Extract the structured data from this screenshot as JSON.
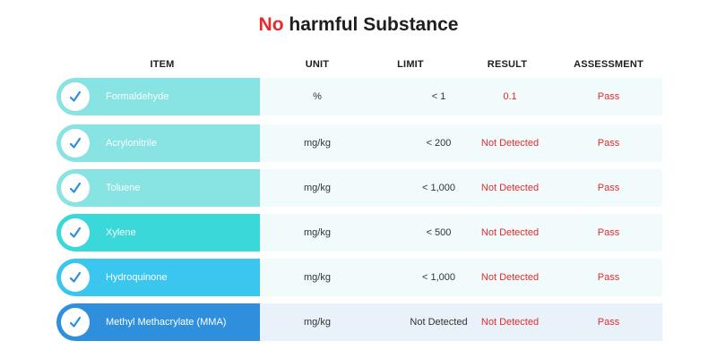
{
  "title": {
    "accent": "No",
    "rest": " harmful Substance"
  },
  "headers": {
    "item": "ITEM",
    "unit": "UNIT",
    "limit": "LIMIT",
    "result": "RESULT",
    "assessment": "ASSESSMENT"
  },
  "rows": [
    {
      "item": "Formaldehyde",
      "unit": "%",
      "limit": "< 1",
      "result": "0.1",
      "assessment": "Pass",
      "color": "#88e3e3",
      "bg": "#f1fbfc"
    },
    {
      "item": "Acrylonitrile",
      "unit": "mg/kg",
      "limit": "< 200",
      "result": "Not Detected",
      "assessment": "Pass",
      "color": "#88e3e3",
      "bg": "#f1fbfc"
    },
    {
      "item": "Toluene",
      "unit": "mg/kg",
      "limit": "< 1,000",
      "result": "Not Detected",
      "assessment": "Pass",
      "color": "#88e3e3",
      "bg": "#f1fbfc"
    },
    {
      "item": "Xylene",
      "unit": "mg/kg",
      "limit": "< 500",
      "result": "Not Detected",
      "assessment": "Pass",
      "color": "#3ad8d8",
      "bg": "#f1fbfc"
    },
    {
      "item": "Hydroquinone",
      "unit": "mg/kg",
      "limit": "< 1,000",
      "result": "Not Detected",
      "assessment": "Pass",
      "color": "#3ac6ee",
      "bg": "#f1fbfc"
    },
    {
      "item": "Methyl Methacrylate (MMA)",
      "unit": "mg/kg",
      "limit": "Not Detected",
      "result": "Not Detected",
      "assessment": "Pass",
      "color": "#2f8fdc",
      "bg": "#e9f2fa"
    }
  ],
  "colors": {
    "accent": "#e8292b",
    "check": "#2f8fdc"
  },
  "icons": {
    "status": "check-icon"
  }
}
